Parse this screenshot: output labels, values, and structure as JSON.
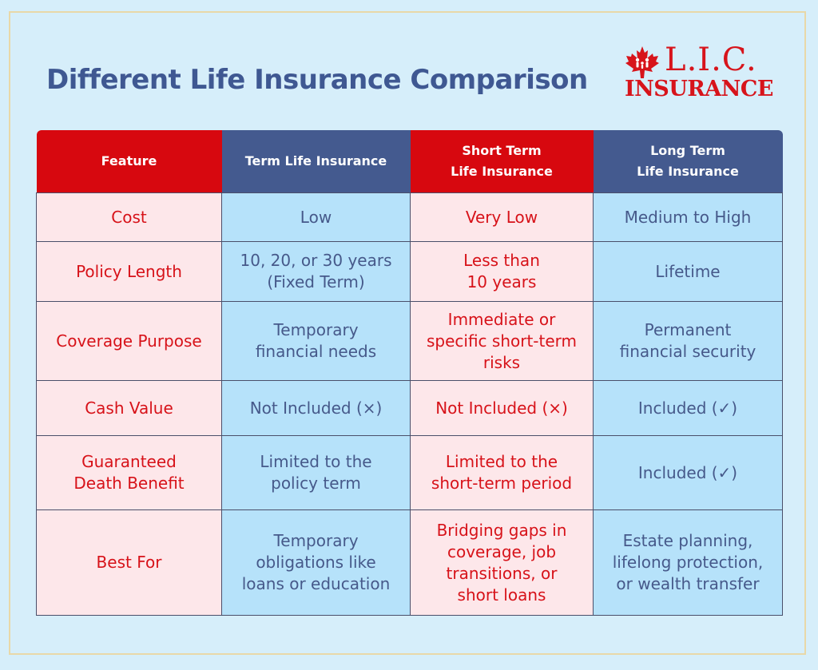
{
  "title": "Different Life Insurance Comparison",
  "logo": {
    "line1": "L.I.C.",
    "line2": "INSURANCE",
    "leaf_icon": "maple-leaf-icon"
  },
  "colors": {
    "red": "#d7080f",
    "navy": "#445a8f",
    "pink_cell": "#fde7ea",
    "blue_cell": "#b6e2fa",
    "background": "#d6eefa"
  },
  "table": {
    "headers": [
      "Feature",
      "Term Life Insurance",
      "Short Term\nLife Insurance",
      "Long Term\nLife Insurance"
    ],
    "rows": [
      [
        "Cost",
        "Low",
        "Very Low",
        "Medium to High"
      ],
      [
        "Policy Length",
        "10, 20, or 30 years\n(Fixed Term)",
        "Less than\n10 years",
        "Lifetime"
      ],
      [
        "Coverage Purpose",
        "Temporary\nfinancial needs",
        "Immediate or\nspecific short-term\nrisks",
        "Permanent\nfinancial security"
      ],
      [
        "Cash Value",
        "Not Included (×)",
        "Not Included (×)",
        "Included (✓)"
      ],
      [
        "Guaranteed\nDeath Benefit",
        "Limited to the\npolicy term",
        "Limited to the\nshort-term period",
        "Included (✓)"
      ],
      [
        "Best For",
        "Temporary\nobligations like\nloans or education",
        "Bridging gaps in\ncoverage, job\ntransitions, or\nshort loans",
        "Estate planning,\nlifelong protection,\nor wealth transfer"
      ]
    ]
  }
}
